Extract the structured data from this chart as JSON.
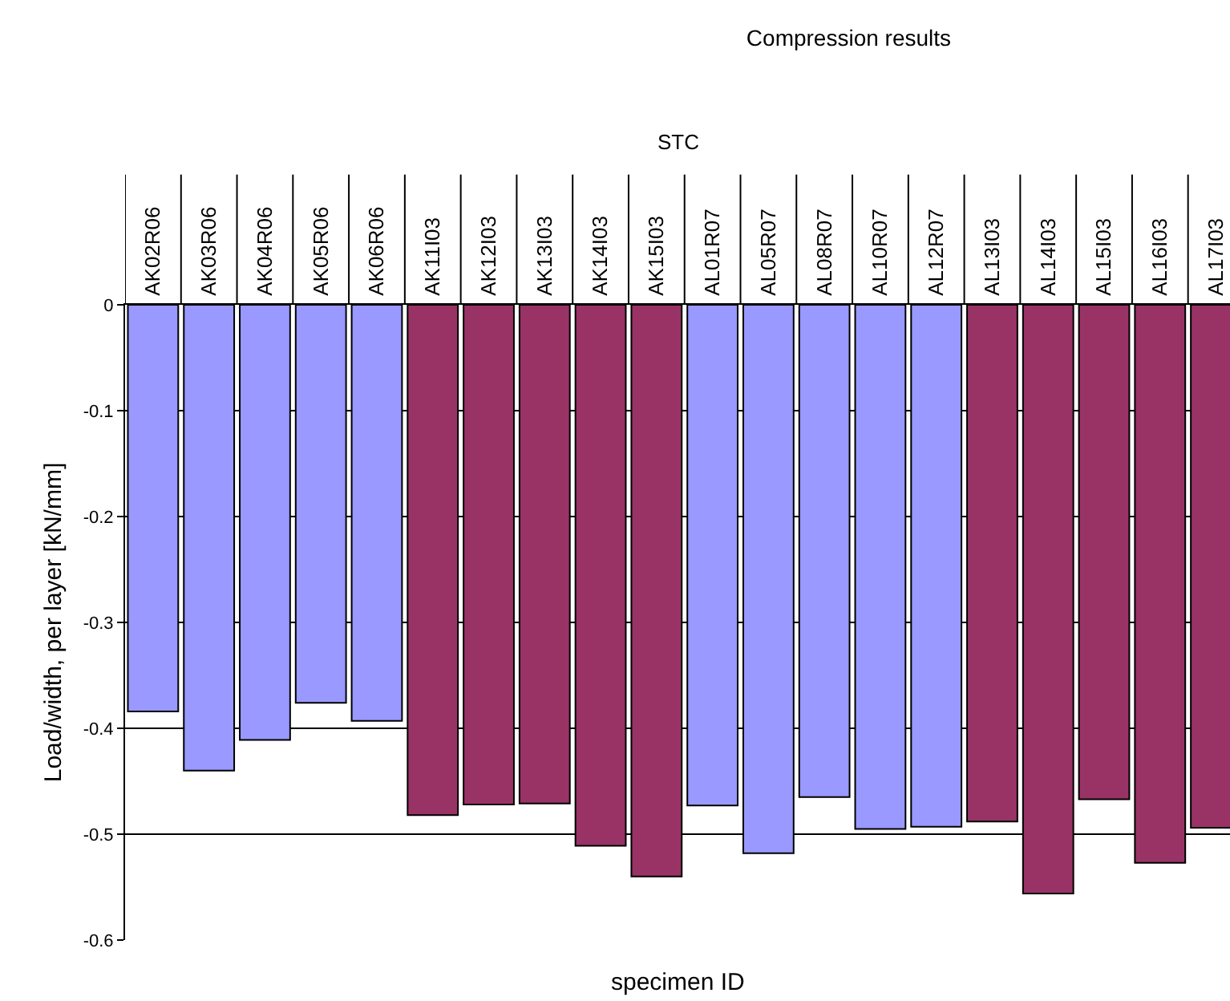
{
  "chart_data": {
    "type": "bar",
    "title": "Compression results",
    "xlabel": "specimen ID",
    "ylabel": "Load/width, per layer [kN/mm]",
    "annotations": [
      "STC"
    ],
    "categories": [
      "AK02R06",
      "AK03R06",
      "AK04R06",
      "AK05R06",
      "AK06R06",
      "AK11I03",
      "AK12I03",
      "AK13I03",
      "AK14I03",
      "AK15I03",
      "AL01R07",
      "AL05R07",
      "AL08R07",
      "AL10R07",
      "AL12R07",
      "AL13I03",
      "AL14I03",
      "AL15I03",
      "AL16I03",
      "AL17I03"
    ],
    "values": [
      -0.384,
      -0.44,
      -0.411,
      -0.376,
      -0.393,
      -0.482,
      -0.472,
      -0.471,
      -0.511,
      -0.54,
      -0.473,
      -0.518,
      -0.465,
      -0.495,
      -0.493,
      -0.488,
      -0.556,
      -0.467,
      -0.527,
      -0.494
    ],
    "colors": [
      "#9999ff",
      "#9999ff",
      "#9999ff",
      "#9999ff",
      "#9999ff",
      "#993366",
      "#993366",
      "#993366",
      "#993366",
      "#993366",
      "#9999ff",
      "#9999ff",
      "#9999ff",
      "#9999ff",
      "#9999ff",
      "#993366",
      "#993366",
      "#993366",
      "#993366",
      "#993366"
    ],
    "ylim": [
      -0.6,
      0
    ],
    "yticks": [
      -0.6,
      -0.5,
      -0.4,
      -0.3,
      -0.2,
      -0.1,
      0
    ],
    "grid": "y",
    "legend": false
  }
}
